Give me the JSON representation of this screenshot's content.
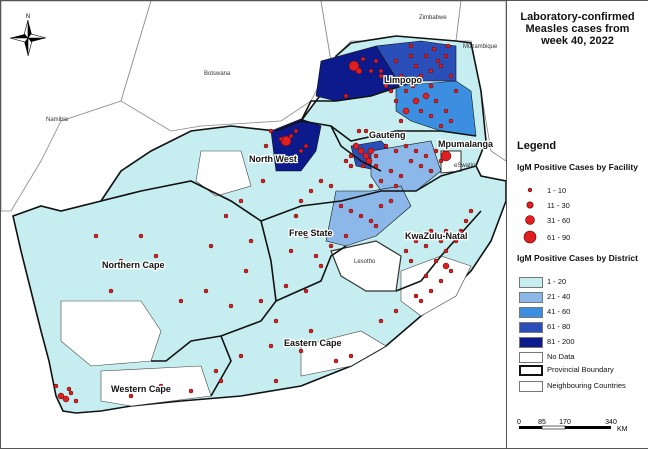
{
  "title_lines": [
    "Laboratory-confirmed",
    "Measles cases from",
    "week 40, 2022"
  ],
  "map_labels": {
    "countries": [
      "Zimbabwe",
      "Mozambique",
      "Botswana",
      "Namibia",
      "eSwatini",
      "Lesotho"
    ],
    "provinces": [
      "Limpopo",
      "Gauteng",
      "Mpumalanga",
      "North West",
      "Free State",
      "KwaZulu-Natal",
      "Northern Cape",
      "Eastern Cape",
      "Western Cape"
    ],
    "north": "N"
  },
  "legend": {
    "title": "Legend",
    "facility_heading": "IgM Positive Cases by Facility",
    "facility_classes": [
      "1 - 10",
      "11 - 30",
      "31 - 60",
      "61 - 90"
    ],
    "district_heading": "IgM Positive Cases by District",
    "district_classes": [
      {
        "label": "1 - 20",
        "color": "#c6eef0"
      },
      {
        "label": "21 - 40",
        "color": "#8bb8e8"
      },
      {
        "label": "41 - 60",
        "color": "#3c8fe0"
      },
      {
        "label": "61 - 80",
        "color": "#2a4fb8"
      },
      {
        "label": "81 - 200",
        "color": "#0d1a8c"
      },
      {
        "label": "No Data",
        "color": "#ffffff"
      }
    ],
    "provincial_boundary": "Provincial Boundary",
    "neighbouring_countries": "Neighbouring Countries"
  },
  "scale_bar": {
    "ticks": [
      "0",
      "85",
      "170",
      "340"
    ],
    "unit": "KM"
  },
  "colors": {
    "marker_fill": "#e02020",
    "marker_stroke": "#5a0000",
    "boundary": "#111111"
  }
}
